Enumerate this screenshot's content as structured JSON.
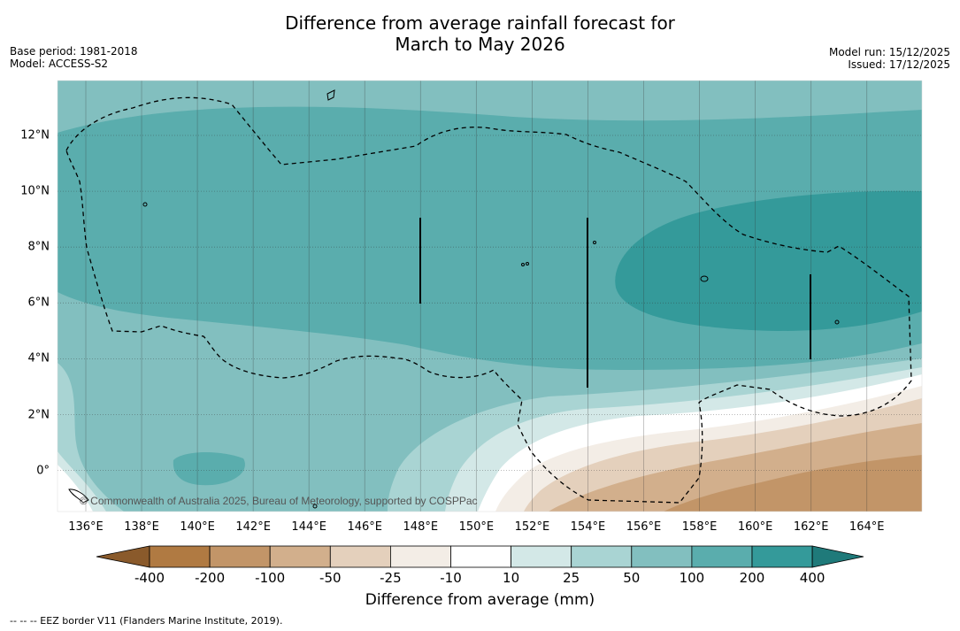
{
  "title": {
    "line1": "Difference from average rainfall forecast for",
    "line2": "March to May 2026"
  },
  "info_left": {
    "base_period": "Base period: 1981-2018",
    "model": "Model: ACCESS-S2"
  },
  "info_right": {
    "model_run": "Model run: 15/12/2025",
    "issued": "Issued: 17/12/2025"
  },
  "map": {
    "lon_ticks": [
      "136°E",
      "138°E",
      "140°E",
      "142°E",
      "144°E",
      "146°E",
      "148°E",
      "150°E",
      "152°E",
      "154°E",
      "156°E",
      "158°E",
      "160°E",
      "162°E",
      "164°E"
    ],
    "lat_ticks": [
      "12°N",
      "10°N",
      "8°N",
      "6°N",
      "4°N",
      "2°N",
      "0°"
    ],
    "copyright": "© Commonwealth of Australia 2025, Bureau of Meteorology, supported by COSPPac"
  },
  "colorbar": {
    "labels": [
      "-400",
      "-200",
      "-100",
      "-50",
      "-25",
      "-10",
      "10",
      "25",
      "50",
      "100",
      "200",
      "400"
    ],
    "colors": [
      "#8a5a2b",
      "#b07a42",
      "#c29568",
      "#d2af8c",
      "#e4d0bc",
      "#f3ede6",
      "#ffffff",
      "#d3e8e7",
      "#a9d4d3",
      "#82bfbf",
      "#5aadad",
      "#349a9a",
      "#1f7a7a"
    ],
    "title": "Difference from average (mm)"
  },
  "footer": "--  --  -- EEZ border V11 (Flanders Marine Institute, 2019)."
}
